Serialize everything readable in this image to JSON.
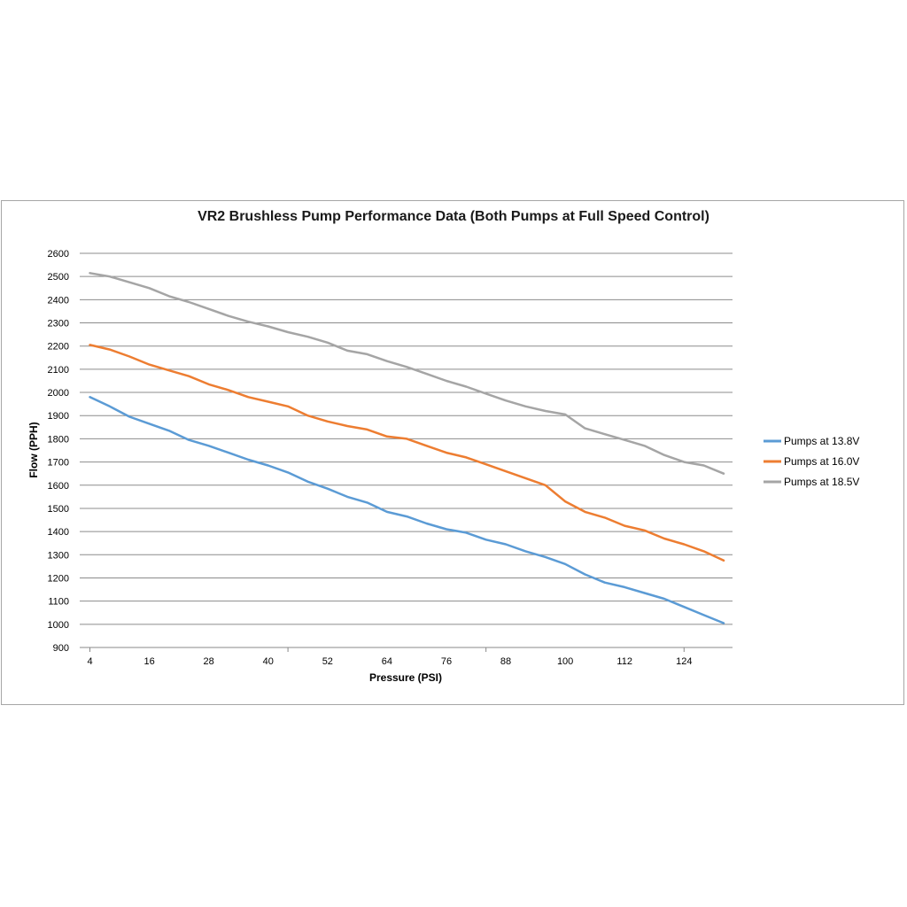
{
  "chart_data": {
    "type": "line",
    "title": "VR2 Brushless Pump Performance Data (Both Pumps at Full Speed Control)",
    "xlabel": "Pressure (PSI)",
    "ylabel": "Flow (PPH)",
    "xlim": [
      4,
      132
    ],
    "ylim": [
      900,
      2600
    ],
    "yticks": [
      900,
      1000,
      1100,
      1200,
      1300,
      1400,
      1500,
      1600,
      1700,
      1800,
      1900,
      2000,
      2100,
      2200,
      2300,
      2400,
      2500,
      2600
    ],
    "xticks": [
      4,
      16,
      28,
      40,
      52,
      64,
      76,
      88,
      100,
      112,
      124
    ],
    "grid": true,
    "legend_position": "right",
    "x": [
      4,
      8,
      12,
      16,
      20,
      24,
      28,
      32,
      36,
      40,
      44,
      48,
      52,
      56,
      60,
      64,
      68,
      72,
      76,
      80,
      84,
      88,
      92,
      96,
      100,
      104,
      108,
      112,
      116,
      120,
      124,
      128,
      132
    ],
    "series": [
      {
        "name": "Pumps at 13.8V",
        "color": "#5b9bd5",
        "values": [
          1980,
          1940,
          1895,
          1865,
          1835,
          1795,
          1770,
          1740,
          1710,
          1685,
          1655,
          1615,
          1585,
          1550,
          1525,
          1485,
          1465,
          1435,
          1410,
          1395,
          1365,
          1345,
          1315,
          1290,
          1260,
          1215,
          1180,
          1160,
          1135,
          1110,
          1075,
          1040,
          1005
        ]
      },
      {
        "name": "Pumps at 16.0V",
        "color": "#ed7d31",
        "values": [
          2205,
          2185,
          2155,
          2120,
          2095,
          2070,
          2035,
          2010,
          1980,
          1960,
          1940,
          1900,
          1875,
          1855,
          1840,
          1810,
          1800,
          1770,
          1740,
          1720,
          1690,
          1660,
          1630,
          1600,
          1530,
          1485,
          1460,
          1425,
          1405,
          1370,
          1345,
          1315,
          1275
        ]
      },
      {
        "name": "Pumps at 18.5V",
        "color": "#a5a5a5",
        "values": [
          2515,
          2500,
          2475,
          2450,
          2415,
          2390,
          2360,
          2330,
          2305,
          2285,
          2260,
          2240,
          2215,
          2180,
          2165,
          2135,
          2110,
          2080,
          2050,
          2025,
          1995,
          1965,
          1940,
          1920,
          1905,
          1845,
          1820,
          1795,
          1770,
          1730,
          1700,
          1685,
          1650
        ]
      }
    ]
  }
}
